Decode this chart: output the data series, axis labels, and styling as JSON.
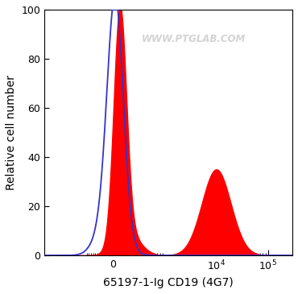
{
  "title": "",
  "xlabel": "65197-1-Ig CD19 (4G7)",
  "ylabel": "Relative cell number",
  "ylim": [
    0,
    100
  ],
  "yticks": [
    0,
    20,
    40,
    60,
    80,
    100
  ],
  "watermark": "WWW.PTGLAB.COM",
  "background_color": "#ffffff",
  "plot_bg_color": "#ffffff",
  "red_fill_color": "#ff0000",
  "blue_line_color": "#3333cc",
  "xlabel_fontsize": 10,
  "ylabel_fontsize": 10,
  "tick_fontsize": 9,
  "linthresh": 300,
  "linscale": 0.45,
  "xlim_lo": -2000,
  "xlim_hi": 300000
}
